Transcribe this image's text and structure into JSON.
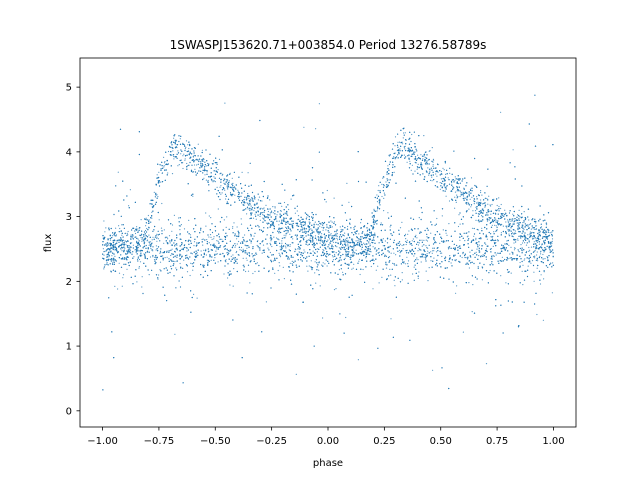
{
  "chart_data": {
    "type": "scatter",
    "title": "1SWASPJ153620.71+003854.0 Period 13276.58789s",
    "xlabel": "phase",
    "ylabel": "flux",
    "xlim": [
      -1.1,
      1.1
    ],
    "ylim": [
      -0.25,
      5.45
    ],
    "xticks": [
      {
        "value": -1.0,
        "label": "−1.00"
      },
      {
        "value": -0.75,
        "label": "−0.75"
      },
      {
        "value": -0.5,
        "label": "−0.50"
      },
      {
        "value": -0.25,
        "label": "−0.25"
      },
      {
        "value": 0.0,
        "label": "0.00"
      },
      {
        "value": 0.25,
        "label": "0.25"
      },
      {
        "value": 0.5,
        "label": "0.50"
      },
      {
        "value": 0.75,
        "label": "0.75"
      },
      {
        "value": 1.0,
        "label": "1.00"
      }
    ],
    "yticks": [
      {
        "value": 0,
        "label": "0"
      },
      {
        "value": 1,
        "label": "1"
      },
      {
        "value": 2,
        "label": "2"
      },
      {
        "value": 3,
        "label": "3"
      },
      {
        "value": 4,
        "label": "4"
      },
      {
        "value": 5,
        "label": "5"
      }
    ],
    "grid": false,
    "legend": "none",
    "point_color": "#1f77b4",
    "series": [
      {
        "x": [
          -1.0,
          -0.9,
          -0.82,
          -0.75,
          -0.68,
          -0.6,
          -0.5,
          -0.4,
          -0.3,
          -0.2,
          -0.1,
          0.0,
          0.1,
          0.18,
          0.25,
          0.32,
          0.4,
          0.5,
          0.6,
          0.7,
          0.8,
          0.9,
          1.0
        ],
        "y": [
          2.55,
          2.55,
          2.6,
          3.55,
          4.1,
          3.9,
          3.6,
          3.35,
          3.1,
          2.95,
          2.8,
          2.7,
          2.6,
          2.6,
          3.55,
          4.1,
          3.9,
          3.6,
          3.35,
          3.1,
          2.95,
          2.8,
          2.6
        ]
      }
    ]
  }
}
